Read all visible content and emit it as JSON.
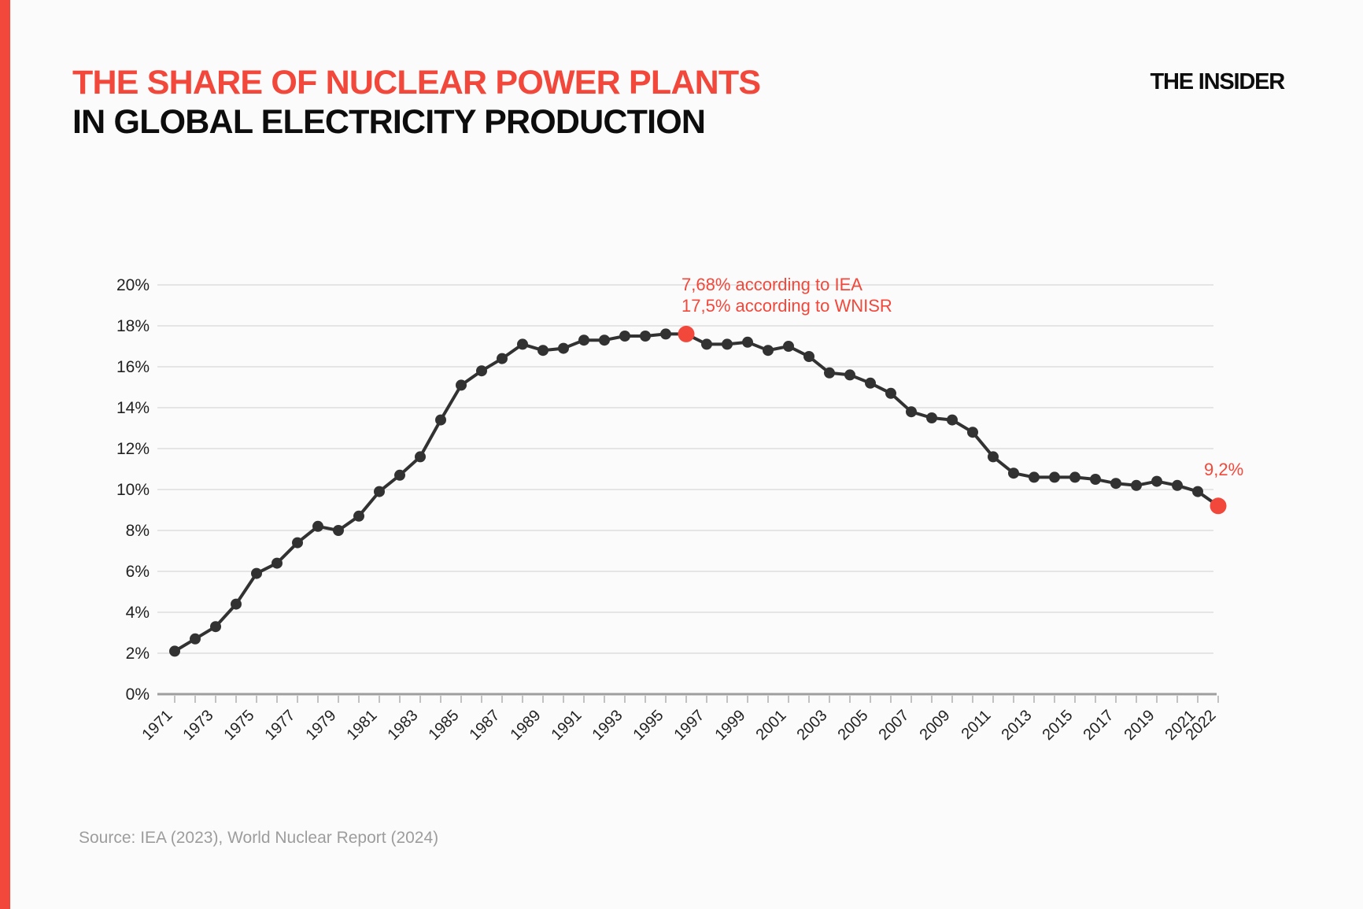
{
  "page": {
    "background": "#fbfbfb",
    "accent_red": "#f2483b"
  },
  "header": {
    "title_line1": "THE SHARE OF NUCLEAR POWER PLANTS",
    "title_line2": "IN GLOBAL ELECTRICITY PRODUCTION",
    "logo": "THE INSIDER"
  },
  "annotations": {
    "peak_line1": "7,68% according to IEA",
    "peak_line2": "17,5% according to WNISR",
    "last_value_label": "9,2%"
  },
  "footer": {
    "source": "Source: IEA (2023), World Nuclear Report (2024)"
  },
  "chart_data": {
    "type": "line",
    "title": "The share of nuclear power plants in global electricity production",
    "x": [
      1971,
      1972,
      1973,
      1974,
      1975,
      1976,
      1977,
      1978,
      1979,
      1980,
      1981,
      1982,
      1983,
      1984,
      1985,
      1986,
      1987,
      1988,
      1989,
      1990,
      1991,
      1992,
      1993,
      1994,
      1995,
      1996,
      1997,
      1998,
      1999,
      2000,
      2001,
      2002,
      2003,
      2004,
      2005,
      2006,
      2007,
      2008,
      2009,
      2010,
      2011,
      2012,
      2013,
      2014,
      2015,
      2016,
      2017,
      2018,
      2019,
      2020,
      2021,
      2022
    ],
    "values": [
      2.1,
      2.7,
      3.3,
      4.4,
      5.9,
      6.4,
      7.4,
      8.2,
      8.0,
      8.7,
      9.9,
      10.7,
      11.6,
      13.4,
      15.1,
      15.8,
      16.4,
      17.1,
      16.8,
      16.9,
      17.3,
      17.3,
      17.5,
      17.5,
      17.6,
      17.6,
      17.1,
      17.1,
      17.2,
      16.8,
      17.0,
      16.5,
      15.7,
      15.6,
      15.2,
      14.7,
      13.8,
      13.5,
      13.4,
      12.8,
      11.6,
      10.8,
      10.6,
      10.6,
      10.6,
      10.5,
      10.3,
      10.2,
      10.4,
      10.2,
      9.9,
      9.2
    ],
    "highlight_years": [
      1996,
      2022
    ],
    "xtick_labels": [
      "1971",
      "1973",
      "1975",
      "1977",
      "1979",
      "1981",
      "1983",
      "1985",
      "1987",
      "1989",
      "1991",
      "1993",
      "1995",
      "1997",
      "1999",
      "2001",
      "2003",
      "2005",
      "2007",
      "2009",
      "2011",
      "2013",
      "2015",
      "2017",
      "2019",
      "2021",
      "2022"
    ],
    "ylim": [
      0,
      20
    ],
    "ytick_step": 2,
    "ytick_suffix": "%",
    "grid": "horizontal",
    "legend": "none",
    "line_color": "#323232",
    "point_color": "#323232",
    "highlight_color": "#f2483b",
    "gridline_color": "#dedede",
    "axis_color": "#9e9e9e",
    "tick_color": "#aeaeae",
    "label_color": "#222222"
  }
}
